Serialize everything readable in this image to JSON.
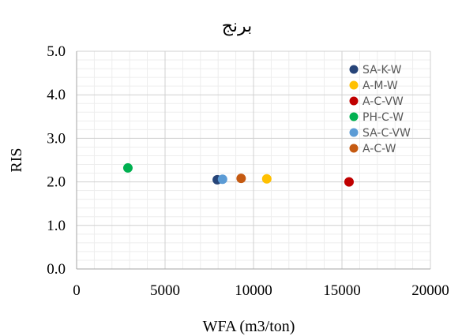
{
  "chart_data": {
    "type": "scatter",
    "title": "برنج",
    "xlabel": "WFA (m3/ton)",
    "ylabel": "RIS",
    "xlim": [
      0,
      20000
    ],
    "ylim": [
      0,
      5
    ],
    "x_ticks": [
      "0",
      "5000",
      "10000",
      "15000",
      "20000"
    ],
    "y_ticks": [
      "0.0",
      "1.0",
      "2.0",
      "3.0",
      "4.0",
      "5.0"
    ],
    "grid": true,
    "legend_position": "top-right",
    "series": [
      {
        "name": "SA-K-W",
        "color": "#264478",
        "points": [
          {
            "x": 7950,
            "y": 2.05
          }
        ]
      },
      {
        "name": "A-M-W",
        "color": "#FFC000",
        "points": [
          {
            "x": 10750,
            "y": 2.07
          }
        ]
      },
      {
        "name": "A-C-VW",
        "color": "#C00000",
        "points": [
          {
            "x": 15400,
            "y": 2.0
          }
        ]
      },
      {
        "name": "PH-C-W",
        "color": "#00B050",
        "points": [
          {
            "x": 2900,
            "y": 2.32
          }
        ]
      },
      {
        "name": "SA-C-VW",
        "color": "#5B9BD5",
        "points": [
          {
            "x": 8250,
            "y": 2.06
          }
        ]
      },
      {
        "name": "A-C-W",
        "color": "#C55A11",
        "points": [
          {
            "x": 9300,
            "y": 2.08
          }
        ]
      }
    ]
  }
}
